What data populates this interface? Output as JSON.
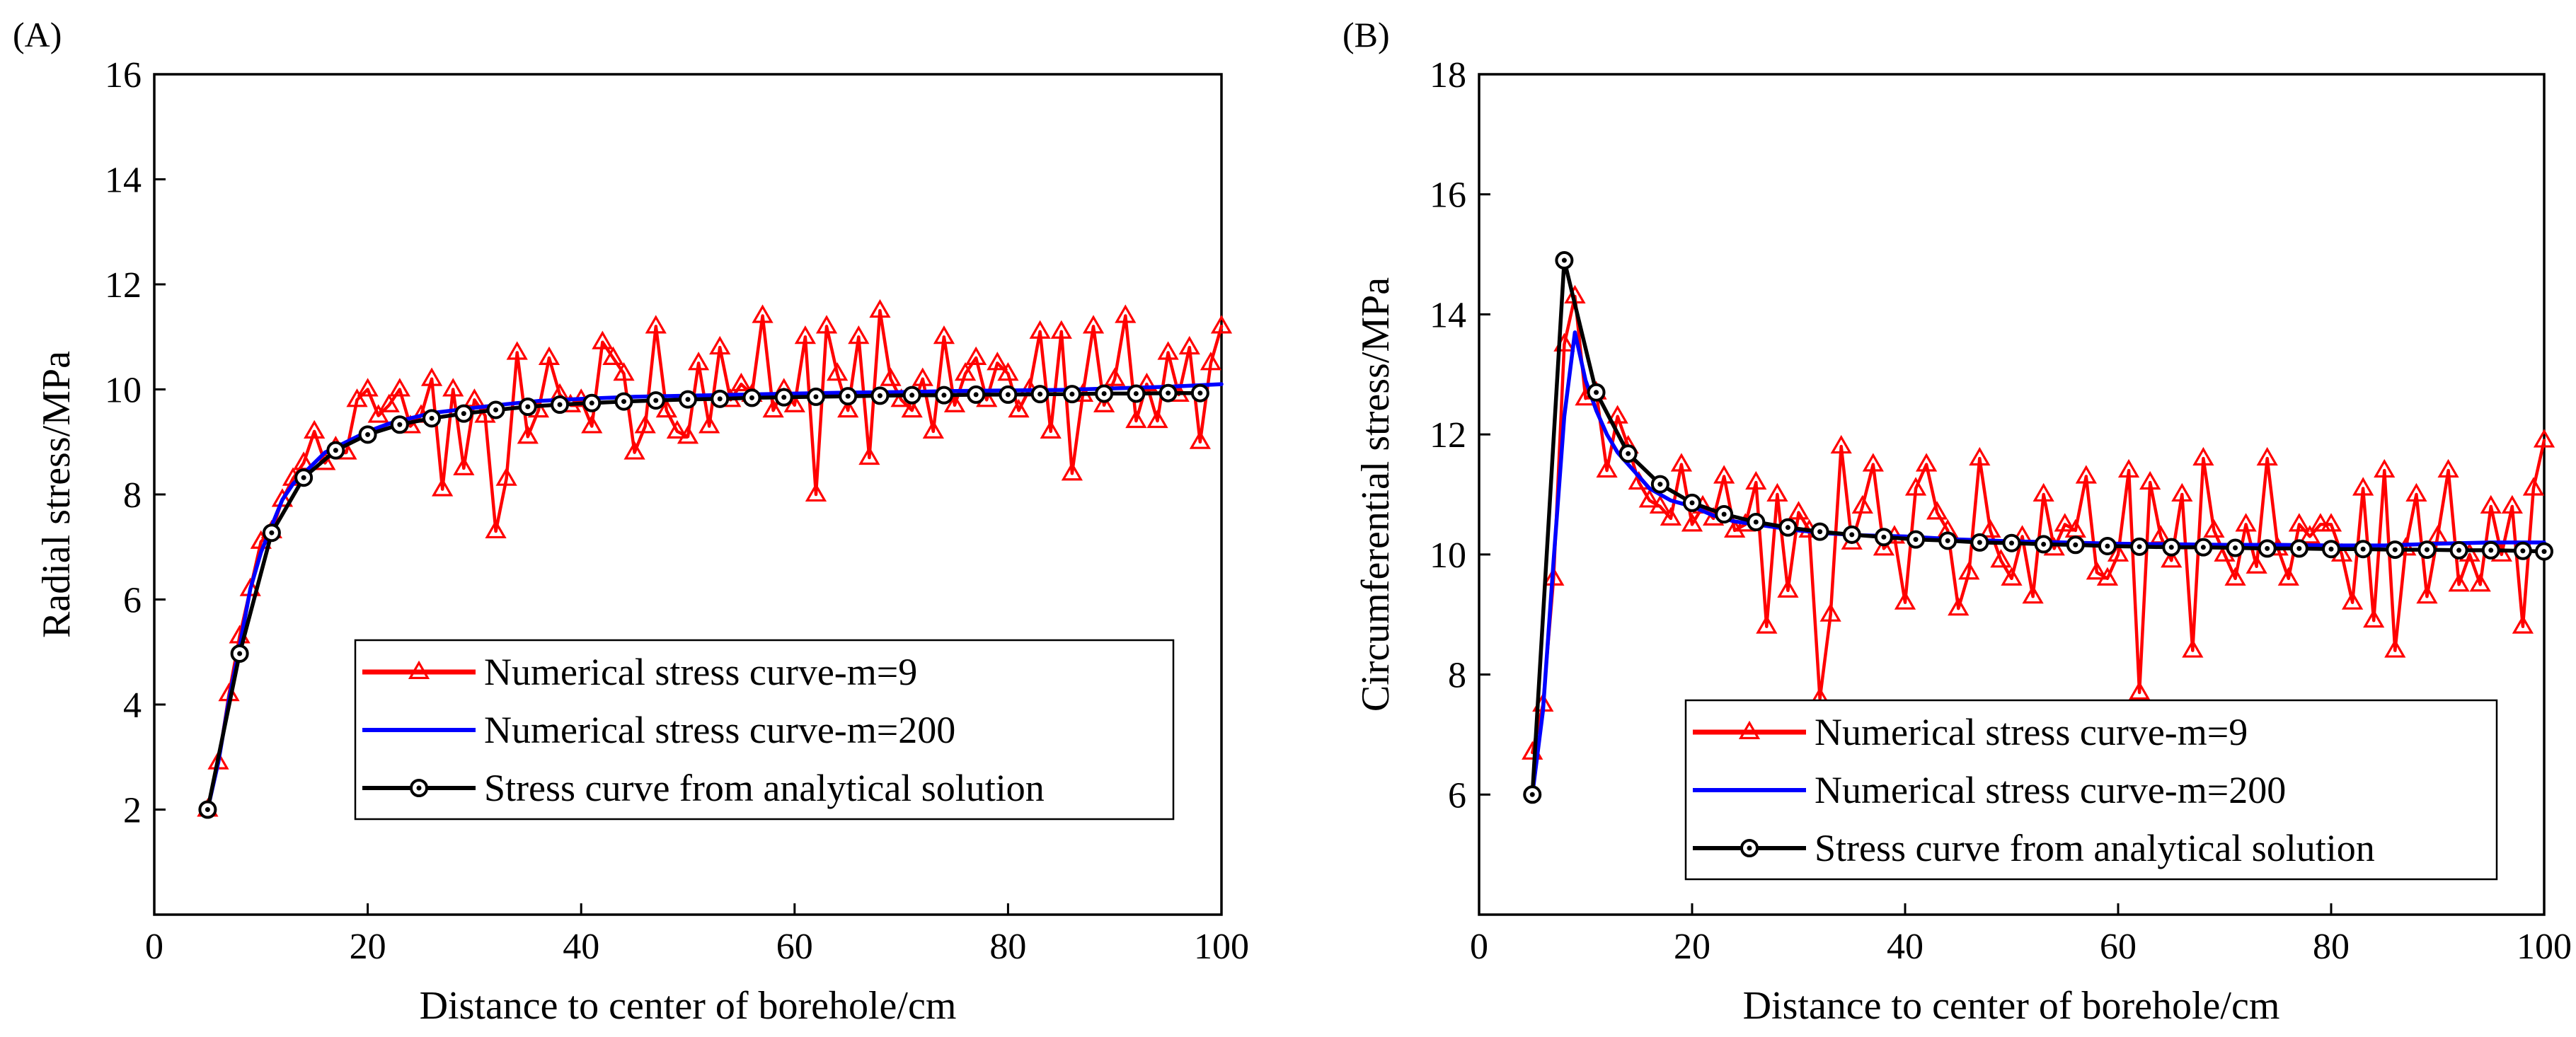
{
  "chart_data": [
    {
      "panel_label": "(A)",
      "type": "line",
      "xlabel": "Distance to center of borehole/cm",
      "ylabel": "Radial stress/MPa",
      "xlim": [
        0,
        100
      ],
      "ylim": [
        0,
        16
      ],
      "xticks": [
        0,
        20,
        40,
        60,
        80,
        100
      ],
      "yticks": [
        2,
        4,
        6,
        8,
        10,
        12,
        14,
        16
      ],
      "legend_position": "bottom-right",
      "series": [
        {
          "name": "Numerical stress curve-m=9",
          "color": "#ff0000",
          "marker": "triangle",
          "x": [
            5,
            6,
            7,
            8,
            9,
            10,
            11,
            12,
            13,
            14,
            15,
            16,
            17,
            18,
            19,
            20,
            21,
            22,
            23,
            24,
            25,
            26,
            27,
            28,
            29,
            30,
            31,
            32,
            33,
            34,
            35,
            36,
            37,
            38,
            39,
            40,
            41,
            42,
            43,
            44,
            45,
            46,
            47,
            48,
            49,
            50,
            51,
            52,
            53,
            54,
            55,
            56,
            57,
            58,
            59,
            60,
            61,
            62,
            63,
            64,
            65,
            66,
            67,
            68,
            69,
            70,
            71,
            72,
            73,
            74,
            75,
            76,
            77,
            78,
            79,
            80,
            81,
            82,
            83,
            84,
            85,
            86,
            87,
            88,
            89,
            90,
            91,
            92,
            93,
            94,
            95,
            96,
            97,
            98,
            99,
            100
          ],
          "y": [
            2.0,
            2.9,
            4.2,
            5.3,
            6.2,
            7.1,
            7.3,
            7.9,
            8.3,
            8.6,
            9.2,
            8.6,
            8.9,
            8.8,
            9.8,
            10.0,
            9.5,
            9.7,
            10.0,
            9.3,
            9.5,
            10.2,
            8.1,
            10.0,
            8.5,
            9.8,
            9.5,
            7.3,
            8.3,
            10.7,
            9.1,
            9.6,
            10.6,
            9.9,
            9.7,
            9.8,
            9.3,
            10.9,
            10.6,
            10.3,
            8.8,
            9.3,
            11.2,
            9.6,
            9.2,
            9.1,
            10.5,
            9.3,
            10.8,
            9.8,
            10.1,
            9.9,
            11.4,
            9.6,
            10.0,
            9.7,
            11.0,
            8.0,
            11.2,
            10.3,
            9.6,
            11.0,
            8.7,
            11.5,
            10.2,
            9.8,
            9.6,
            10.2,
            9.2,
            11.0,
            9.7,
            10.3,
            10.6,
            9.8,
            10.5,
            10.3,
            9.6,
            10.0,
            11.1,
            9.2,
            11.1,
            8.4,
            9.9,
            11.2,
            9.7,
            10.2,
            11.4,
            9.4,
            10.1,
            9.4,
            10.7,
            9.9,
            10.8,
            9.0,
            10.5,
            11.2
          ]
        },
        {
          "name": "Numerical stress curve-m=200",
          "color": "#0000ff",
          "marker": "none",
          "x": [
            5,
            6,
            7,
            8,
            9,
            10,
            11,
            12,
            13,
            14,
            15,
            16,
            17,
            18,
            19,
            20,
            22,
            24,
            26,
            28,
            30,
            33,
            36,
            40,
            45,
            50,
            55,
            60,
            65,
            70,
            75,
            80,
            85,
            90,
            95,
            100
          ],
          "y": [
            2.0,
            2.9,
            4.1,
            5.1,
            6.2,
            6.9,
            7.4,
            7.9,
            8.2,
            8.4,
            8.6,
            8.8,
            8.9,
            9.0,
            9.1,
            9.2,
            9.35,
            9.45,
            9.55,
            9.6,
            9.65,
            9.72,
            9.78,
            9.82,
            9.86,
            9.88,
            9.9,
            9.92,
            9.94,
            9.95,
            9.97,
            9.98,
            9.99,
            10.02,
            10.05,
            10.1
          ]
        },
        {
          "name": "Stress curve from analytical solution",
          "color": "#000000",
          "marker": "circle-dot",
          "x": [
            5,
            8,
            11,
            14,
            17,
            20,
            23,
            26,
            29,
            32,
            35,
            38,
            41,
            44,
            47,
            50,
            53,
            56,
            59,
            62,
            65,
            68,
            71,
            74,
            77,
            80,
            83,
            86,
            89,
            92,
            95,
            98
          ],
          "y": [
            2.0,
            4.97,
            7.27,
            8.32,
            8.84,
            9.14,
            9.33,
            9.45,
            9.54,
            9.61,
            9.67,
            9.71,
            9.74,
            9.77,
            9.79,
            9.81,
            9.82,
            9.84,
            9.85,
            9.86,
            9.87,
            9.88,
            9.89,
            9.89,
            9.9,
            9.9,
            9.91,
            9.91,
            9.92,
            9.92,
            9.93,
            9.93
          ]
        }
      ]
    },
    {
      "panel_label": "(B)",
      "type": "line",
      "xlabel": "Distance to center of borehole/cm",
      "ylabel": "Circumferential stress/MPa",
      "xlim": [
        0,
        100
      ],
      "ylim": [
        4,
        18
      ],
      "xticks": [
        0,
        20,
        40,
        60,
        80,
        100
      ],
      "yticks": [
        6,
        8,
        10,
        12,
        14,
        16,
        18
      ],
      "legend_position": "bottom-right",
      "series": [
        {
          "name": "Numerical stress curve-m=9",
          "color": "#ff0000",
          "marker": "triangle",
          "x": [
            5,
            6,
            7,
            8,
            9,
            10,
            11,
            12,
            13,
            14,
            15,
            16,
            17,
            18,
            19,
            20,
            21,
            22,
            23,
            24,
            25,
            26,
            27,
            28,
            29,
            30,
            31,
            32,
            33,
            34,
            35,
            36,
            37,
            38,
            39,
            40,
            41,
            42,
            43,
            44,
            45,
            46,
            47,
            48,
            49,
            50,
            51,
            52,
            53,
            54,
            55,
            56,
            57,
            58,
            59,
            60,
            61,
            62,
            63,
            64,
            65,
            66,
            67,
            68,
            69,
            70,
            71,
            72,
            73,
            74,
            75,
            76,
            77,
            78,
            79,
            80,
            81,
            82,
            83,
            84,
            85,
            86,
            87,
            88,
            89,
            90,
            91,
            92,
            93,
            94,
            95,
            96,
            97,
            98,
            99,
            100
          ],
          "y": [
            6.7,
            7.5,
            9.6,
            13.5,
            14.3,
            12.6,
            12.7,
            11.4,
            12.3,
            11.8,
            11.2,
            10.9,
            10.8,
            10.6,
            11.5,
            10.5,
            10.8,
            10.6,
            11.3,
            10.4,
            10.5,
            11.2,
            8.8,
            11.0,
            9.4,
            10.7,
            10.4,
            7.6,
            9.0,
            11.8,
            10.2,
            10.8,
            11.5,
            10.1,
            10.3,
            9.2,
            11.1,
            11.5,
            10.7,
            10.4,
            9.1,
            9.7,
            11.6,
            10.4,
            9.9,
            9.6,
            10.3,
            9.3,
            11.0,
            10.1,
            10.5,
            10.4,
            11.3,
            9.7,
            9.6,
            10.0,
            11.4,
            7.7,
            11.2,
            10.3,
            9.9,
            11.0,
            8.4,
            11.6,
            10.4,
            10.0,
            9.6,
            10.5,
            9.8,
            11.6,
            10.1,
            9.6,
            10.5,
            10.3,
            10.5,
            10.5,
            10.0,
            9.2,
            11.1,
            8.9,
            11.4,
            8.4,
            10.1,
            11.0,
            9.3,
            10.3,
            11.4,
            9.5,
            10.0,
            9.5,
            10.8,
            10.0,
            10.8,
            8.8,
            11.1,
            11.9
          ]
        },
        {
          "name": "Numerical stress curve-m=200",
          "color": "#0000ff",
          "marker": "none",
          "x": [
            5,
            6,
            7,
            8,
            9,
            10,
            11,
            12,
            13,
            14,
            15,
            16,
            17,
            18,
            19,
            20,
            22,
            24,
            26,
            28,
            30,
            33,
            36,
            40,
            45,
            50,
            55,
            60,
            65,
            70,
            75,
            80,
            85,
            90,
            95,
            100
          ],
          "y": [
            6.0,
            7.4,
            9.9,
            12.3,
            13.7,
            12.9,
            12.4,
            12.0,
            11.7,
            11.5,
            11.3,
            11.1,
            11.0,
            10.9,
            10.85,
            10.8,
            10.65,
            10.55,
            10.5,
            10.45,
            10.4,
            10.35,
            10.32,
            10.3,
            10.25,
            10.22,
            10.2,
            10.18,
            10.17,
            10.16,
            10.16,
            10.15,
            10.15,
            10.18,
            10.2,
            10.2
          ]
        },
        {
          "name": "Stress curve from analytical solution",
          "color": "#000000",
          "marker": "circle-dot",
          "x": [
            5,
            8,
            11,
            14,
            17,
            20,
            23,
            26,
            29,
            32,
            35,
            38,
            41,
            44,
            47,
            50,
            53,
            56,
            59,
            62,
            65,
            68,
            71,
            74,
            77,
            80,
            83,
            86,
            89,
            92,
            95,
            98,
            100
          ],
          "y": [
            6.0,
            14.9,
            12.7,
            11.68,
            11.17,
            10.86,
            10.67,
            10.54,
            10.45,
            10.38,
            10.33,
            10.29,
            10.25,
            10.23,
            10.2,
            10.19,
            10.17,
            10.16,
            10.14,
            10.13,
            10.12,
            10.12,
            10.11,
            10.1,
            10.1,
            10.09,
            10.09,
            10.08,
            10.08,
            10.07,
            10.07,
            10.06,
            10.05
          ]
        }
      ]
    }
  ]
}
